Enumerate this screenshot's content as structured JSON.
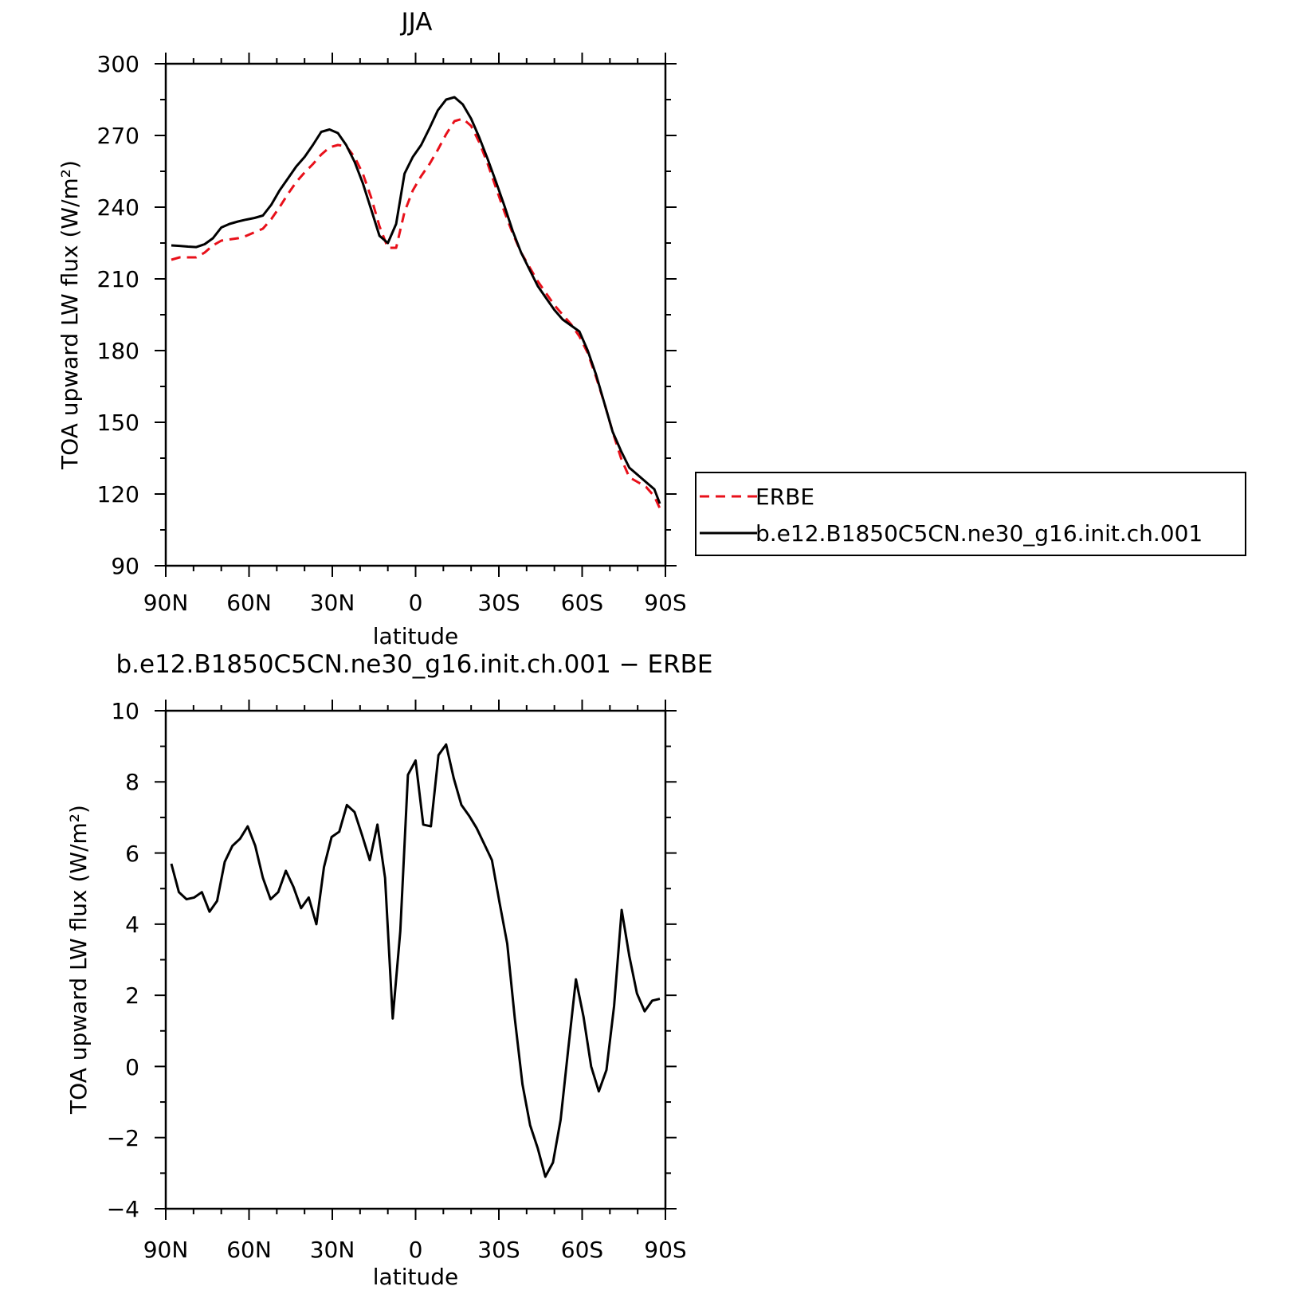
{
  "chart_data": [
    {
      "type": "line",
      "title": "JJA",
      "xlabel": "latitude",
      "ylabel": "TOA upward LW flux (W/m²)",
      "ylim": [
        90,
        300
      ],
      "yticks": [
        "90",
        "120",
        "150",
        "180",
        "210",
        "240",
        "270",
        "300"
      ],
      "xlim": [
        90,
        -90
      ],
      "xticks": [
        {
          "value": 90,
          "label": "90N"
        },
        {
          "value": 60,
          "label": "60N"
        },
        {
          "value": 30,
          "label": "30N"
        },
        {
          "value": 0,
          "label": "0"
        },
        {
          "value": -30,
          "label": "30S"
        },
        {
          "value": -60,
          "label": "60S"
        },
        {
          "value": -90,
          "label": "90S"
        }
      ],
      "legend_placement": "right",
      "series": [
        {
          "name": "ERBE",
          "color": "#e8101a",
          "dash": true,
          "x": [
            88,
            85,
            82,
            79,
            76,
            73,
            70,
            67,
            64,
            61,
            58,
            55,
            52,
            49,
            46,
            43,
            40,
            37,
            34,
            31,
            28,
            25,
            22,
            19,
            16,
            13,
            10,
            7,
            4,
            1,
            -2,
            -5,
            -8,
            -11,
            -14,
            -17,
            -20,
            -23,
            -26,
            -29,
            -32,
            -35,
            -38,
            -41,
            -44,
            -47,
            -50,
            -53,
            -56,
            -59,
            -62,
            -65,
            -68,
            -71,
            -74,
            -77,
            -80,
            -83,
            -86,
            -88
          ],
          "y": [
            218,
            219,
            219,
            219,
            221,
            224,
            226,
            226.5,
            227,
            228,
            229.5,
            231,
            235,
            240,
            245.5,
            250.5,
            254.5,
            258,
            262,
            265,
            266,
            265.5,
            261,
            254,
            244,
            232,
            223,
            223,
            238,
            247,
            253,
            258,
            264,
            270.5,
            276,
            277,
            274,
            267,
            258,
            248,
            238,
            229,
            221,
            215,
            209,
            204,
            199,
            195,
            191,
            186,
            179,
            169,
            158,
            146,
            135,
            127,
            125,
            123,
            119,
            114
          ]
        },
        {
          "name": "b.e12.B1850C5CN.ne30_g16.init.ch.001",
          "color": "#000000",
          "dash": false,
          "x": [
            88,
            85,
            82,
            79,
            76,
            73,
            70,
            67,
            64,
            61,
            58,
            55,
            52,
            49,
            46,
            43,
            40,
            37,
            34,
            31,
            28,
            25,
            22,
            19,
            16,
            13,
            10,
            7,
            4,
            1,
            -2,
            -5,
            -8,
            -11,
            -14,
            -17,
            -20,
            -23,
            -26,
            -29,
            -32,
            -35,
            -38,
            -41,
            -44,
            -47,
            -50,
            -53,
            -56,
            -59,
            -62,
            -65,
            -68,
            -71,
            -74,
            -77,
            -80,
            -83,
            -86,
            -88
          ],
          "y": [
            224,
            223.8,
            223.5,
            223.3,
            224.5,
            227,
            231.5,
            233,
            234,
            234.8,
            235.5,
            236.5,
            241,
            247,
            252,
            257,
            261,
            266,
            271.5,
            272.5,
            271,
            266,
            259,
            250,
            239,
            228,
            225,
            233,
            254,
            261,
            266,
            273,
            280.5,
            285,
            286,
            283,
            277,
            269,
            260,
            250.5,
            240.5,
            230,
            221,
            214,
            207,
            202,
            197,
            193,
            190.5,
            188,
            180,
            170,
            158,
            146,
            138,
            131,
            128,
            125,
            122,
            116
          ]
        }
      ]
    },
    {
      "type": "line",
      "title": "b.e12.B1850C5CN.ne30_g16.init.ch.001 − ERBE",
      "xlabel": "latitude",
      "ylabel": "TOA upward LW flux (W/m²)",
      "ylim": [
        -4,
        10
      ],
      "yticks": [
        "−4",
        "−2",
        "0",
        "2",
        "4",
        "6",
        "8",
        "10"
      ],
      "xlim": [
        90,
        -90
      ],
      "xticks": [
        {
          "value": 90,
          "label": "90N"
        },
        {
          "value": 60,
          "label": "60N"
        },
        {
          "value": 30,
          "label": "30N"
        },
        {
          "value": 0,
          "label": "0"
        },
        {
          "value": -30,
          "label": "30S"
        },
        {
          "value": -60,
          "label": "60S"
        },
        {
          "value": -90,
          "label": "90S"
        }
      ],
      "series": [
        {
          "color": "#000000",
          "dash": false,
          "x": [
            88,
            85.25,
            82.5,
            79.75,
            77,
            74.25,
            71.5,
            68.75,
            66,
            63.25,
            60.5,
            57.75,
            55,
            52.25,
            49.5,
            46.75,
            44,
            41.25,
            38.5,
            35.75,
            33,
            30.25,
            27.5,
            24.75,
            22,
            19.25,
            16.5,
            13.75,
            11,
            8.25,
            5.5,
            2.75,
            0,
            -2.75,
            -5.5,
            -8.25,
            -11,
            -13.75,
            -16.5,
            -19.25,
            -22,
            -24.75,
            -27.5,
            -30.25,
            -33,
            -35.75,
            -38.5,
            -41.25,
            -44,
            -46.75,
            -49.5,
            -52.25,
            -55,
            -57.75,
            -60.5,
            -63.25,
            -66,
            -68.75,
            -71.5,
            -74.25,
            -77,
            -79.75,
            -82.5,
            -85.25,
            -88
          ],
          "y": [
            5.7,
            4.9,
            4.7,
            4.75,
            4.9,
            4.35,
            4.65,
            5.75,
            6.2,
            6.4,
            6.75,
            6.2,
            5.3,
            4.7,
            4.9,
            5.5,
            5.05,
            4.45,
            4.75,
            4.0,
            5.6,
            6.45,
            6.6,
            7.35,
            7.15,
            6.5,
            5.8,
            6.8,
            5.3,
            1.35,
            3.8,
            8.2,
            8.6,
            6.8,
            6.75,
            8.75,
            9.05,
            8.1,
            7.35,
            7.05,
            6.7,
            6.25,
            5.8,
            4.6,
            3.45,
            1.35,
            -0.5,
            -1.65,
            -2.3,
            -3.1,
            -2.7,
            -1.5,
            0.5,
            2.45,
            1.4,
            0.0,
            -0.7,
            -0.1,
            1.7,
            4.4,
            3.1,
            2.05,
            1.55,
            1.85,
            1.9
          ]
        }
      ]
    }
  ]
}
